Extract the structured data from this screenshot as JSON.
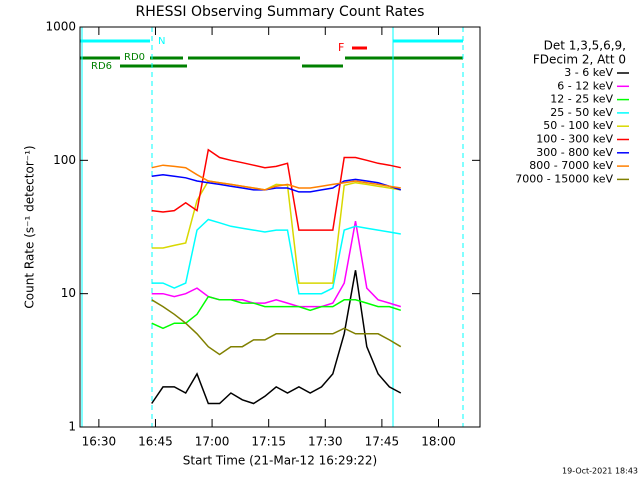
{
  "chart_data": {
    "type": "line",
    "title": "RHESSI Observing Summary Count Rates",
    "x_label": "Start Time (21-Mar-12 16:29:22)",
    "y_label": "Count Rate (s⁻¹ detector⁻¹)",
    "footer": "19-Oct-2021 18:43",
    "legend_header": [
      "Det 1,3,5,6,9,",
      "FDecim 2, Att 0"
    ],
    "flags": [
      "N",
      "RD0",
      "RD6",
      "F"
    ],
    "y_scale": "log",
    "xlim": [
      "16:25",
      "18:11"
    ],
    "xticks": [
      "16:30",
      "16:45",
      "17:00",
      "17:15",
      "17:30",
      "17:45",
      "18:00"
    ],
    "ylim": [
      1,
      1000
    ],
    "yticks": [
      1,
      10,
      100,
      1000
    ],
    "x": [
      "16:44",
      "16:47",
      "16:50",
      "16:53",
      "16:56",
      "16:59",
      "17:02",
      "17:05",
      "17:08",
      "17:11",
      "17:14",
      "17:17",
      "17:20",
      "17:23",
      "17:26",
      "17:29",
      "17:32",
      "17:35",
      "17:38",
      "17:41",
      "17:44",
      "17:47",
      "17:50"
    ],
    "series": [
      {
        "name": "3 - 6 keV",
        "color": "#000000",
        "values": [
          1.5,
          2,
          2,
          1.8,
          2.5,
          1.5,
          1.5,
          1.8,
          1.6,
          1.5,
          1.7,
          2,
          1.8,
          2,
          1.8,
          2,
          2.5,
          5,
          15,
          4,
          2.5,
          2,
          1.8
        ]
      },
      {
        "name": "6 - 12 keV",
        "color": "#ff00ff",
        "values": [
          10,
          10,
          9.5,
          10,
          11,
          9.5,
          9,
          9,
          9,
          8.5,
          8.5,
          9,
          8.5,
          8,
          8,
          8,
          8.5,
          12,
          35,
          11,
          9,
          8.5,
          8
        ]
      },
      {
        "name": "12 - 25 keV",
        "color": "#00ff00",
        "values": [
          6,
          5.5,
          6,
          6,
          7,
          9.5,
          9,
          9,
          8.5,
          8.5,
          8,
          8,
          8,
          8,
          7.5,
          8,
          8,
          9,
          9,
          8.5,
          8,
          8,
          7.5
        ]
      },
      {
        "name": "25 - 50 keV",
        "color": "#00ffff",
        "values": [
          12,
          12,
          11,
          12,
          30,
          36,
          34,
          32,
          31,
          30,
          29,
          30,
          30,
          10,
          10,
          10,
          11,
          30,
          32,
          31,
          30,
          29,
          28
        ]
      },
      {
        "name": "50 - 100 keV",
        "color": "#d8d800",
        "values": [
          22,
          22,
          23,
          24,
          50,
          70,
          68,
          66,
          64,
          62,
          60,
          66,
          65,
          12,
          12,
          12,
          12,
          65,
          68,
          66,
          64,
          62,
          60
        ]
      },
      {
        "name": "100 - 300 keV",
        "color": "#ff0000",
        "values": [
          42,
          41,
          42,
          48,
          42,
          120,
          105,
          100,
          96,
          92,
          88,
          90,
          95,
          30,
          30,
          30,
          30,
          105,
          105,
          100,
          95,
          92,
          88
        ]
      },
      {
        "name": "300 - 800 keV",
        "color": "#0000ff",
        "values": [
          76,
          78,
          76,
          74,
          70,
          68,
          66,
          64,
          62,
          60,
          60,
          62,
          62,
          58,
          58,
          60,
          62,
          70,
          72,
          70,
          68,
          64,
          60
        ]
      },
      {
        "name": "800 - 7000 keV",
        "color": "#ff8000",
        "values": [
          88,
          92,
          90,
          88,
          78,
          70,
          68,
          66,
          64,
          62,
          60,
          64,
          66,
          62,
          62,
          64,
          66,
          68,
          70,
          68,
          66,
          64,
          62
        ]
      },
      {
        "name": "7000 - 15000 keV",
        "color": "#808000",
        "values": [
          9,
          8,
          7,
          6,
          5,
          4,
          3.5,
          4,
          4,
          4.5,
          4.5,
          5,
          5,
          5,
          5,
          5,
          5,
          5.5,
          5,
          5,
          5,
          4.5,
          4
        ]
      }
    ]
  }
}
